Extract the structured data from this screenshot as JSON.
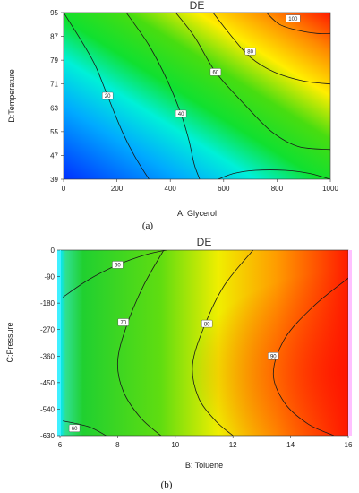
{
  "chart_data": [
    {
      "type": "contour",
      "panel": "(a)",
      "title": "DE",
      "xlabel": "A: Glycerol",
      "ylabel": "D:Temperature",
      "xlim": [
        0,
        1000
      ],
      "ylim": [
        39,
        95
      ],
      "xticks": [
        "0",
        "200",
        "400",
        "600",
        "800",
        "1000"
      ],
      "yticks": [
        "39",
        "47",
        "55",
        "63",
        "71",
        "79",
        "87",
        "95"
      ],
      "color_low": "#0033ff",
      "color_high": "#ff1a00",
      "contours": [
        {
          "level": "20",
          "points": [
            [
              0,
              95
            ],
            [
              70,
              85
            ],
            [
              120,
              77
            ],
            [
              165,
              67
            ],
            [
              220,
              55
            ],
            [
              265,
              47
            ],
            [
              320,
              39
            ]
          ]
        },
        {
          "level": "40",
          "points": [
            [
              235,
              95
            ],
            [
              320,
              84
            ],
            [
              390,
              72
            ],
            [
              440,
              61
            ],
            [
              470,
              52
            ],
            [
              490,
              44
            ],
            [
              510,
              39
            ]
          ]
        },
        {
          "level": "60",
          "points": [
            [
              420,
              95
            ],
            [
              490,
              87
            ],
            [
              570,
              75
            ],
            [
              680,
              64
            ],
            [
              780,
              55
            ],
            [
              880,
              50
            ],
            [
              1000,
              49
            ]
          ]
        },
        {
          "level": "60",
          "points": [
            [
              580,
              39
            ],
            [
              640,
              41
            ],
            [
              720,
              42
            ],
            [
              830,
              42
            ],
            [
              920,
              41
            ],
            [
              1000,
              39
            ]
          ]
        },
        {
          "level": "80",
          "points": [
            [
              560,
              95
            ],
            [
              630,
              87
            ],
            [
              700,
              80
            ],
            [
              790,
              75
            ],
            [
              900,
              72
            ],
            [
              1000,
              71
            ]
          ]
        },
        {
          "level": "100",
          "points": [
            [
              760,
              95
            ],
            [
              810,
              91
            ],
            [
              880,
              89
            ],
            [
              950,
              88
            ],
            [
              1000,
              88
            ]
          ]
        }
      ],
      "labels": [
        {
          "text": "20",
          "x": 165,
          "y": 67
        },
        {
          "text": "40",
          "x": 440,
          "y": 61
        },
        {
          "text": "60",
          "x": 570,
          "y": 75
        },
        {
          "text": "80",
          "x": 700,
          "y": 82
        },
        {
          "text": "100",
          "x": 860,
          "y": 93
        }
      ]
    },
    {
      "type": "contour",
      "panel": "(b)",
      "title": "DE",
      "xlabel": "B: Toluene",
      "ylabel": "C:Pressure",
      "xlim": [
        6,
        16
      ],
      "ylim": [
        -630,
        0
      ],
      "xticks": [
        "6",
        "8",
        "10",
        "12",
        "14",
        "16"
      ],
      "yticks": [
        "0",
        "-90",
        "-180",
        "-270",
        "-360",
        "-450",
        "-540",
        "-630"
      ],
      "color_low": "#00e0ff",
      "color_high": "#ff1a00",
      "contours": [
        {
          "level": "60",
          "points": [
            [
              6.1,
              -160
            ],
            [
              7,
              -100
            ],
            [
              8,
              -50
            ],
            [
              9,
              -15
            ],
            [
              9.7,
              0
            ]
          ]
        },
        {
          "level": "60",
          "points": [
            [
              6.1,
              -580
            ],
            [
              7,
              -600
            ],
            [
              7.6,
              -630
            ]
          ]
        },
        {
          "level": "70",
          "points": [
            [
              9.6,
              0
            ],
            [
              8.9,
              -120
            ],
            [
              8.3,
              -260
            ],
            [
              8.0,
              -380
            ],
            [
              8.2,
              -480
            ],
            [
              8.8,
              -570
            ],
            [
              9.5,
              -630
            ]
          ]
        },
        {
          "level": "80",
          "points": [
            [
              12.7,
              0
            ],
            [
              11.7,
              -120
            ],
            [
              11.0,
              -260
            ],
            [
              10.6,
              -390
            ],
            [
              10.8,
              -500
            ],
            [
              11.4,
              -580
            ],
            [
              12.0,
              -630
            ]
          ]
        },
        {
          "level": "90",
          "points": [
            [
              16,
              -95
            ],
            [
              14.8,
              -190
            ],
            [
              13.8,
              -300
            ],
            [
              13.4,
              -420
            ],
            [
              13.8,
              -520
            ],
            [
              14.6,
              -590
            ],
            [
              15.5,
              -630
            ]
          ]
        }
      ],
      "labels": [
        {
          "text": "60",
          "x": 8.0,
          "y": -50
        },
        {
          "text": "70",
          "x": 8.2,
          "y": -245
        },
        {
          "text": "80",
          "x": 11.1,
          "y": -250
        },
        {
          "text": "90",
          "x": 13.4,
          "y": -360
        },
        {
          "text": "60",
          "x": 6.5,
          "y": -605
        }
      ]
    }
  ]
}
